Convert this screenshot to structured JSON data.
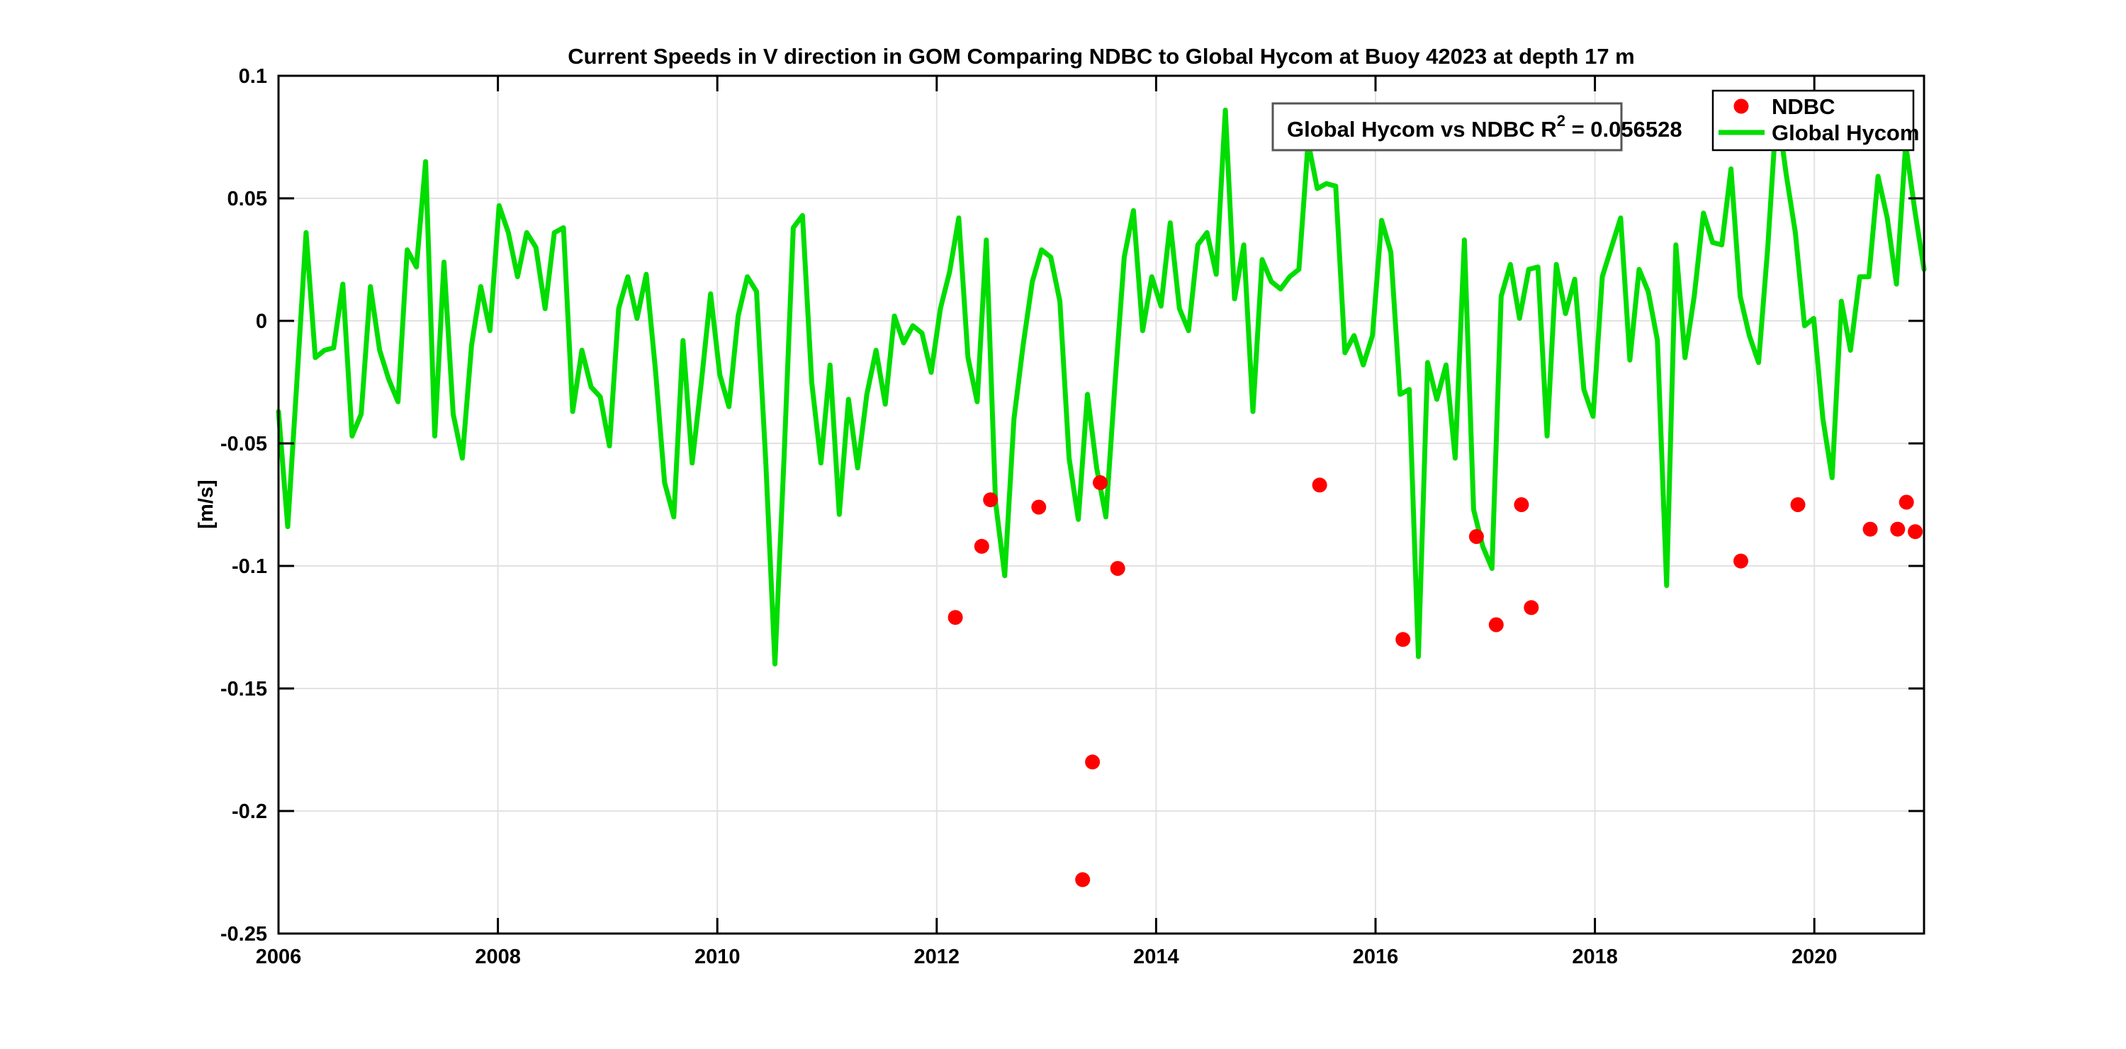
{
  "title": "Current Speeds in V direction in GOM Comparing NDBC to Global Hycom at Buoy  42023  at depth  17 m",
  "y_axis_label": "[m/s]",
  "annotation": {
    "text_before_sup": "Global Hycom vs NDBC R",
    "sup": "2",
    "text_after_sup": " = 0.056528"
  },
  "legend": {
    "items": [
      {
        "label": "NDBC",
        "marker": "dot-icon",
        "color": "#ff0000"
      },
      {
        "label": "Global Hycom",
        "marker": "line-icon",
        "color": "#00dd00"
      }
    ]
  },
  "colors": {
    "background": "#ffffff",
    "grid": "#e2e2e2",
    "axis": "#000000",
    "hycom_green": "#00dd00",
    "ndbc_red": "#ff0000",
    "annotation_border": "#555555"
  },
  "chart_data": {
    "type": "line+scatter",
    "title": "Current Speeds in V direction in GOM Comparing NDBC to Global Hycom at Buoy  42023  at depth  17 m",
    "xlabel": "",
    "ylabel": "[m/s]",
    "xlim": [
      2006,
      2021
    ],
    "ylim": [
      -0.25,
      0.1
    ],
    "grid": true,
    "legend_position": "top-right",
    "x_ticks": [
      2006,
      2008,
      2010,
      2012,
      2014,
      2016,
      2018,
      2020
    ],
    "x_tick_labels": [
      "2006",
      "2008",
      "2010",
      "2012",
      "2014",
      "2016",
      "2018",
      "2020"
    ],
    "y_ticks": [
      0.1,
      0.05,
      0,
      -0.05,
      -0.1,
      -0.15,
      -0.2,
      -0.25
    ],
    "y_tick_labels": [
      "0.1",
      "0.05",
      "0",
      "-0.05",
      "-0.1",
      "-0.15",
      "-0.2",
      "-0.25"
    ],
    "series": [
      {
        "name": "Global Hycom",
        "type": "line",
        "color": "#00dd00",
        "line_width": 7,
        "x_start": 2006.0,
        "x_end": 2021.0,
        "values": [
          -0.037,
          -0.084,
          -0.025,
          0.036,
          -0.015,
          -0.012,
          -0.011,
          0.015,
          -0.047,
          -0.038,
          0.014,
          -0.012,
          -0.024,
          -0.033,
          0.029,
          0.022,
          0.065,
          -0.047,
          0.024,
          -0.038,
          -0.056,
          -0.01,
          0.014,
          -0.004,
          0.047,
          0.036,
          0.018,
          0.036,
          0.03,
          0.005,
          0.036,
          0.038,
          -0.037,
          -0.012,
          -0.027,
          -0.031,
          -0.051,
          0.005,
          0.018,
          0.001,
          0.019,
          -0.02,
          -0.066,
          -0.08,
          -0.008,
          -0.058,
          -0.025,
          0.011,
          -0.022,
          -0.035,
          0.002,
          0.018,
          0.012,
          -0.057,
          -0.14,
          -0.055,
          0.038,
          0.043,
          -0.025,
          -0.058,
          -0.018,
          -0.079,
          -0.032,
          -0.06,
          -0.03,
          -0.012,
          -0.034,
          0.002,
          -0.009,
          -0.002,
          -0.005,
          -0.021,
          0.005,
          0.02,
          0.042,
          -0.015,
          -0.033,
          0.033,
          -0.074,
          -0.104,
          -0.04,
          -0.01,
          0.016,
          0.029,
          0.026,
          0.008,
          -0.056,
          -0.081,
          -0.03,
          -0.06,
          -0.08,
          -0.025,
          0.026,
          0.045,
          -0.004,
          0.018,
          0.006,
          0.04,
          0.005,
          -0.004,
          0.031,
          0.036,
          0.019,
          0.086,
          0.009,
          0.031,
          -0.037,
          0.025,
          0.016,
          0.013,
          0.018,
          0.021,
          0.073,
          0.054,
          0.056,
          0.055,
          -0.013,
          -0.006,
          -0.018,
          -0.006,
          0.041,
          0.028,
          -0.03,
          -0.028,
          -0.137,
          -0.017,
          -0.032,
          -0.018,
          -0.056,
          0.033,
          -0.077,
          -0.092,
          -0.101,
          0.01,
          0.023,
          0.001,
          0.021,
          0.022,
          -0.047,
          0.023,
          0.003,
          0.017,
          -0.028,
          -0.039,
          0.018,
          0.03,
          0.042,
          -0.016,
          0.021,
          0.012,
          -0.008,
          -0.108,
          0.031,
          -0.015,
          0.01,
          0.044,
          0.032,
          0.031,
          0.062,
          0.01,
          -0.006,
          -0.017,
          0.03,
          0.088,
          0.06,
          0.036,
          -0.002,
          0.001,
          -0.04,
          -0.064,
          0.008,
          -0.012,
          0.018,
          0.018,
          0.059,
          0.042,
          0.015,
          0.072,
          0.045,
          0.021
        ]
      },
      {
        "name": "NDBC",
        "type": "scatter",
        "color": "#ff0000",
        "marker_radius": 10.5,
        "points": [
          [
            2012.17,
            -0.121
          ],
          [
            2012.41,
            -0.092
          ],
          [
            2012.49,
            -0.073
          ],
          [
            2012.93,
            -0.076
          ],
          [
            2013.33,
            -0.228
          ],
          [
            2013.42,
            -0.18
          ],
          [
            2013.49,
            -0.066
          ],
          [
            2013.65,
            -0.101
          ],
          [
            2015.49,
            -0.067
          ],
          [
            2016.25,
            -0.13
          ],
          [
            2016.92,
            -0.088
          ],
          [
            2017.1,
            -0.124
          ],
          [
            2017.33,
            -0.075
          ],
          [
            2017.42,
            -0.117
          ],
          [
            2019.33,
            -0.098
          ],
          [
            2019.85,
            -0.075
          ],
          [
            2020.51,
            -0.085
          ],
          [
            2020.76,
            -0.085
          ],
          [
            2020.84,
            -0.074
          ],
          [
            2020.92,
            -0.086
          ]
        ]
      }
    ]
  }
}
